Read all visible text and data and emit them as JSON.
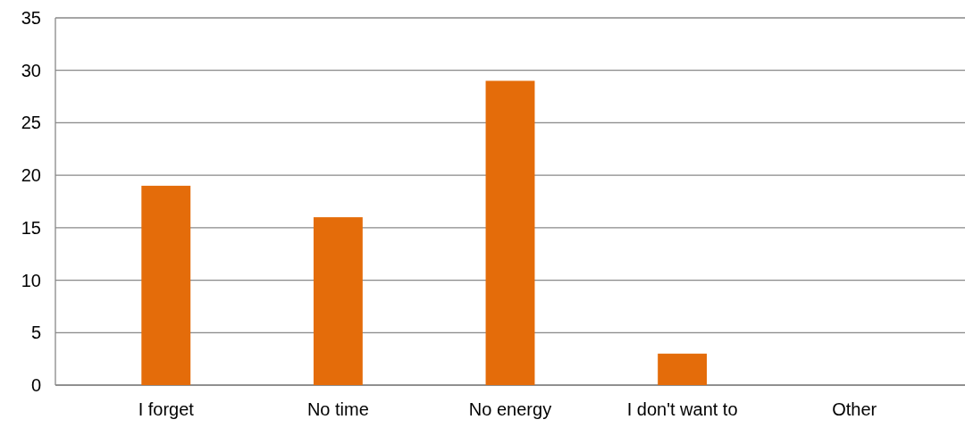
{
  "chart_data": {
    "type": "bar",
    "categories": [
      "I forget",
      "No time",
      "No energy",
      "I don't want to",
      "Other"
    ],
    "values": [
      19,
      16,
      29,
      3,
      0
    ],
    "color": "#e46c0a",
    "ylim": [
      0,
      35
    ],
    "yticks": [
      0,
      5,
      10,
      15,
      20,
      25,
      30,
      35
    ],
    "grid": "y"
  }
}
